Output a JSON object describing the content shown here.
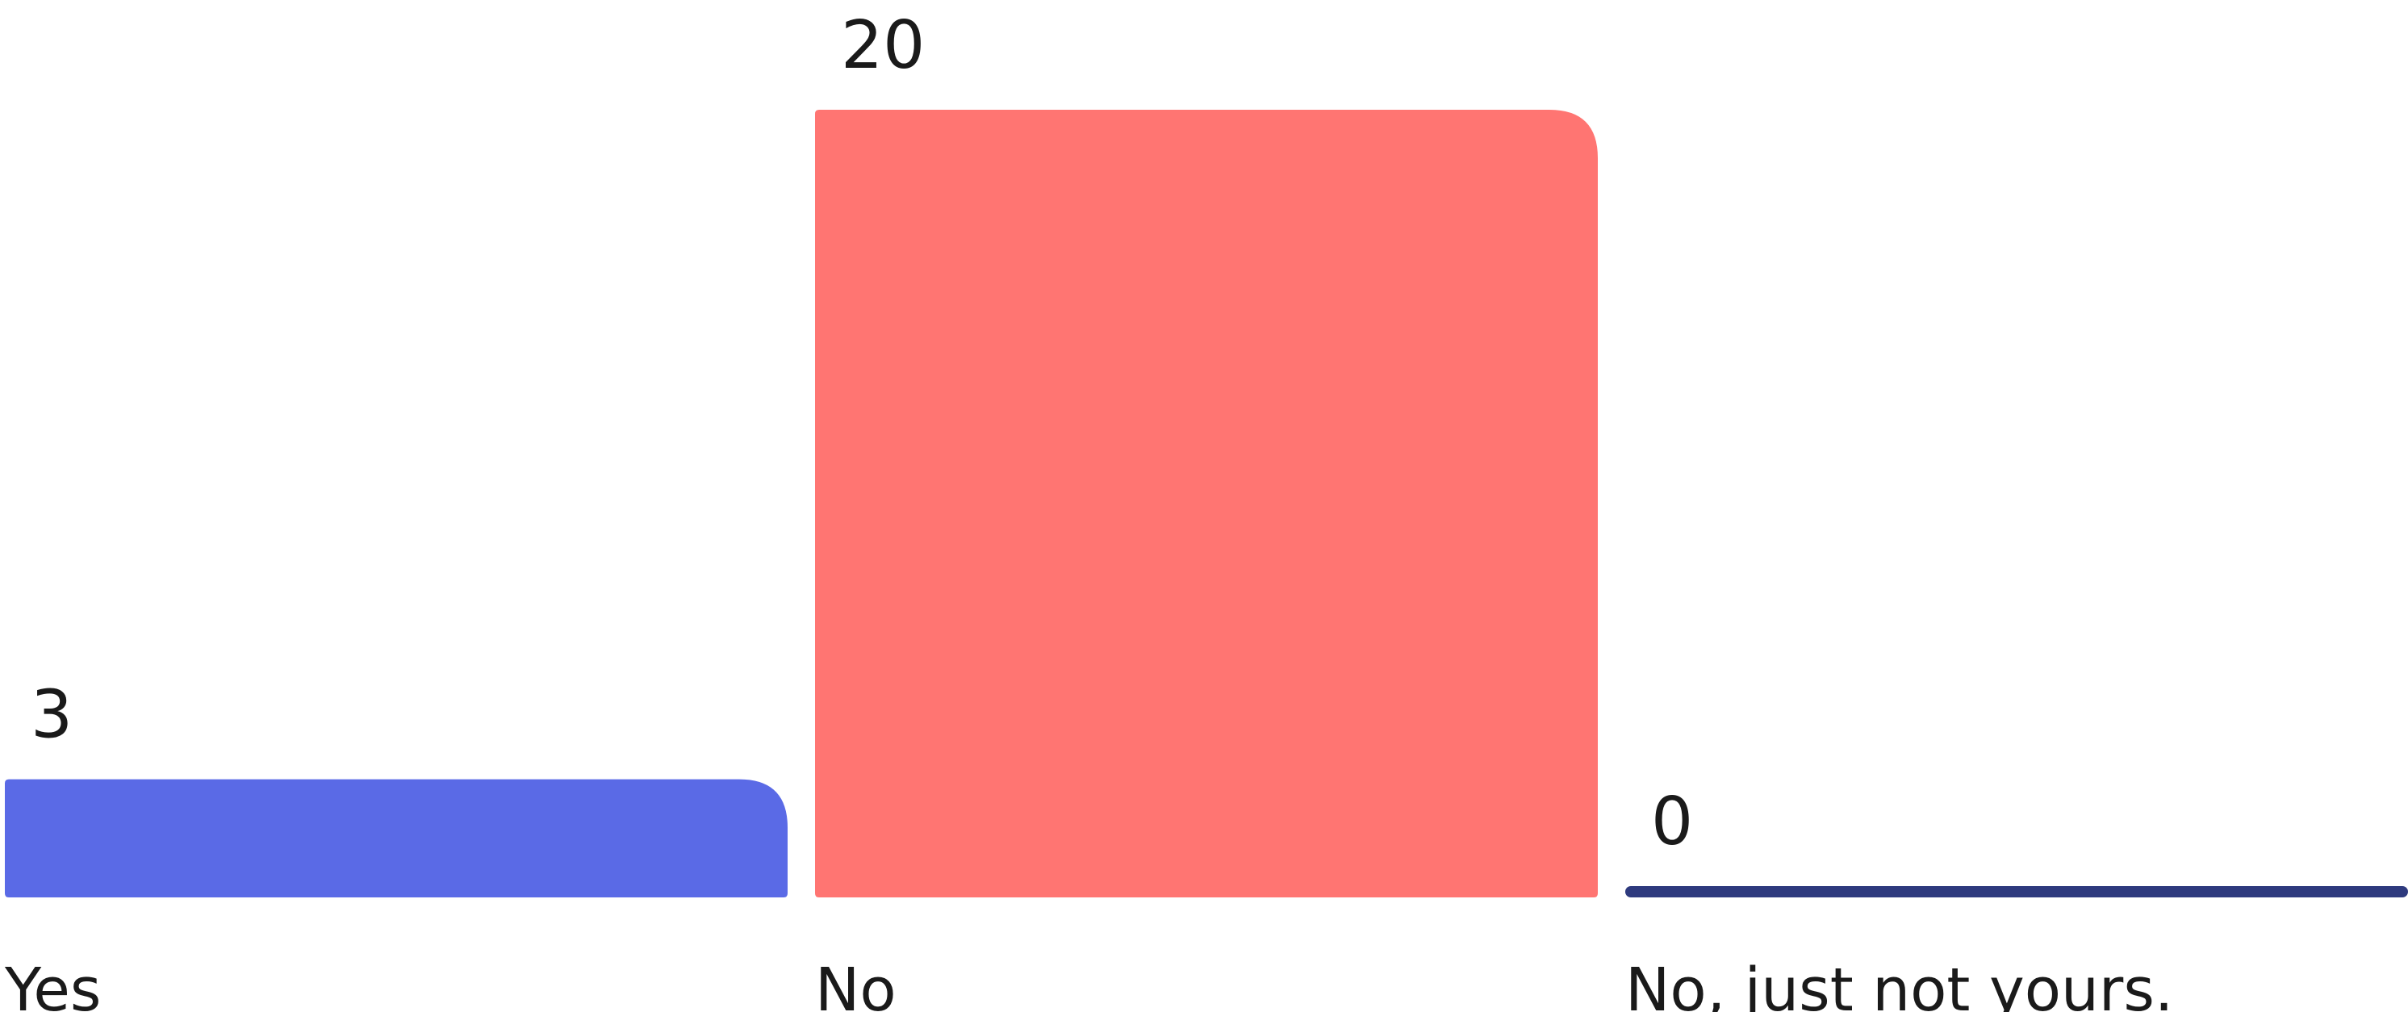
{
  "chart_data": {
    "type": "bar",
    "categories": [
      "Yes",
      "No",
      "No, just not yours."
    ],
    "values": [
      3,
      20,
      0
    ],
    "colors": [
      "#5A6AE6",
      "#FF7572",
      "#2E3A7E"
    ],
    "ylim": [
      0,
      20
    ],
    "grid": false,
    "axes_visible": false,
    "data_labels": true
  }
}
